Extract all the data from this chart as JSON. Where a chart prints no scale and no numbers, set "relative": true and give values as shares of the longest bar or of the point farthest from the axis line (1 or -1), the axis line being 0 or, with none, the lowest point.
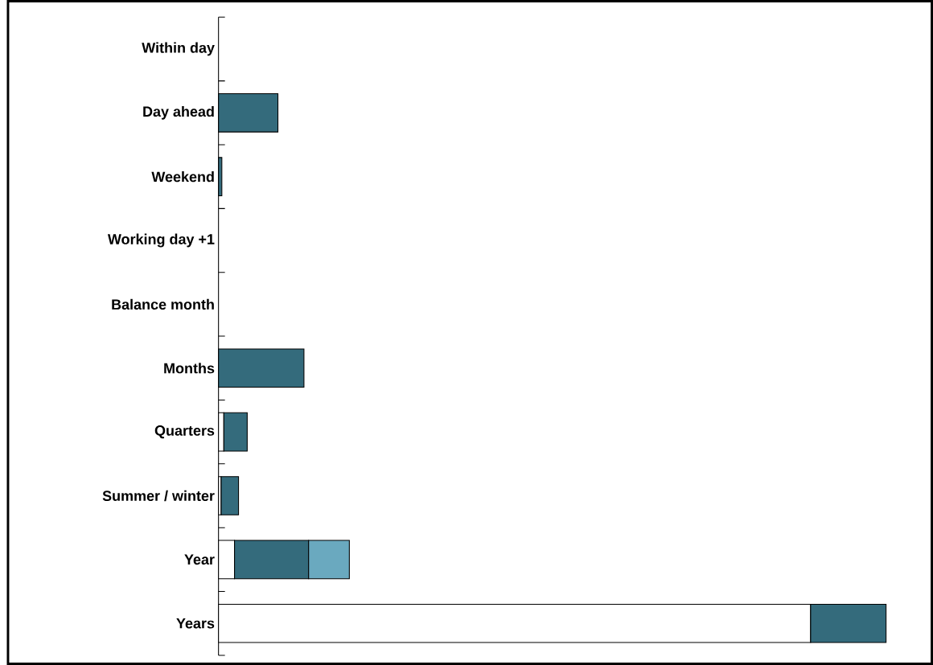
{
  "chart_data": {
    "type": "bar",
    "orientation": "horizontal",
    "stacked": true,
    "relative": true,
    "categories": [
      "Within day",
      "Day ahead",
      "Weekend",
      "Working day +1",
      "Balance month",
      "Months",
      "Quarters",
      "Summer / winter",
      "Year",
      "Years"
    ],
    "series": [
      {
        "color": "#ffffff",
        "values": [
          null,
          null,
          null,
          null,
          null,
          null,
          0.008,
          0.004,
          0.024,
          0.887
        ]
      },
      {
        "color": "#346b7c",
        "values": [
          null,
          0.089,
          0.005,
          null,
          null,
          0.128,
          0.035,
          0.026,
          0.111,
          0.113
        ]
      },
      {
        "color": "#6aa9bf",
        "values": [
          null,
          null,
          null,
          null,
          null,
          null,
          null,
          null,
          0.061,
          null
        ]
      }
    ]
  }
}
